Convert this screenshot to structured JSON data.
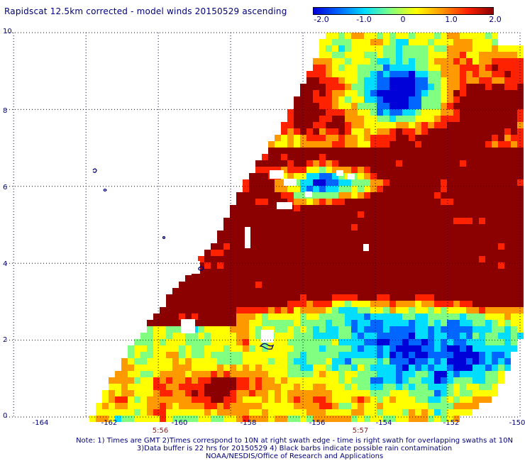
{
  "title": "Rapidscat 12.5km corrected - model winds 20150529 ascending",
  "colorbar": {
    "labels": [
      "-2.0",
      "-1.0",
      "0",
      "1.0",
      "2.0"
    ],
    "min": -2.0,
    "max": 2.0,
    "colors": [
      "#0000d8",
      "#0066ff",
      "#00ddff",
      "#80ff80",
      "#ffff00",
      "#ff9900",
      "#ff2200",
      "#8b0000"
    ]
  },
  "axes": {
    "x_ticks": [
      "-164",
      "-162",
      "-160",
      "-158",
      "-156",
      "-154",
      "-152",
      "-150"
    ],
    "y_ticks": [
      "0",
      "2",
      "4",
      "6",
      "8",
      "10"
    ],
    "x_range": [
      -164.2,
      -150.0
    ],
    "y_range": [
      0,
      10
    ],
    "grid": true,
    "grid_style": "dotted"
  },
  "time_labels": [
    {
      "lon": -161.1,
      "text": "5:56"
    },
    {
      "lon": -155.9,
      "text": "5:57"
    }
  ],
  "footer": {
    "line1": "Note: 1) Times are GMT 2)Times correspond to 10N at right swath edge - time is right swath for overlapping swaths at 10N",
    "line2": "3)Data buffer is 22 hrs for 20150529 4) Black barbs indicate possible rain contamination",
    "line3": "NOAA/NESDIS/Office of Research and Applications"
  },
  "colors": {
    "text": "#00007a",
    "time_text": "#8b1a1a",
    "grid": "#00007a"
  }
}
